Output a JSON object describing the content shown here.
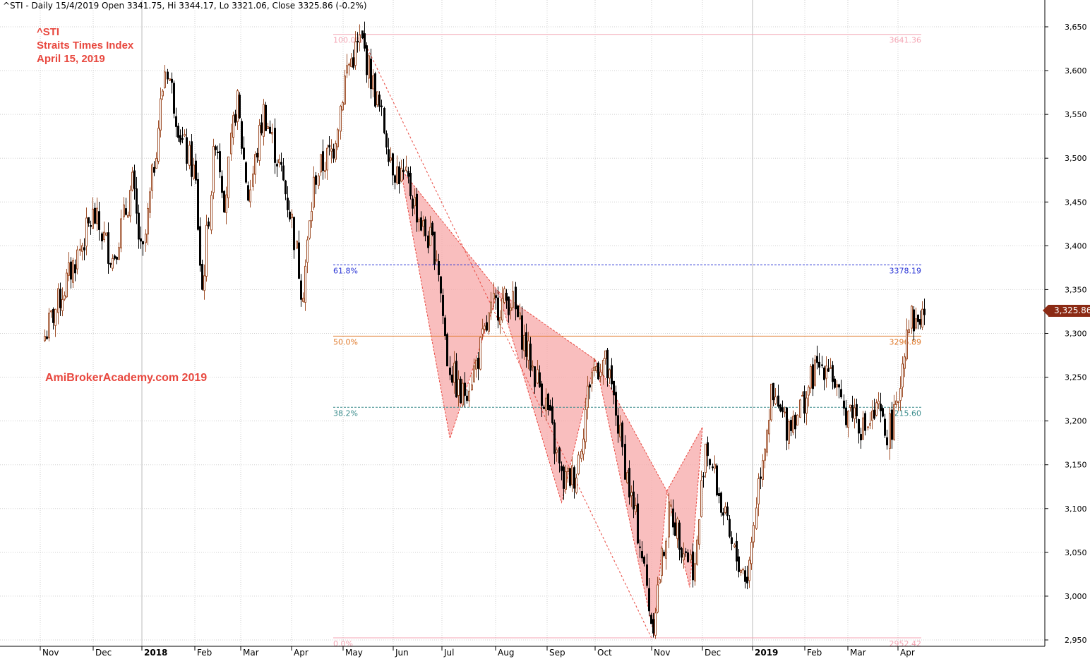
{
  "header": {
    "text": "^STI - Daily 15/4/2019 Open 3341.75, Hi 3344.17, Lo 3321.06, Close 3325.86 (-0.2%)"
  },
  "annotations": {
    "symbol": "^STI",
    "name": "Straits Times Index",
    "date": "April 15, 2019",
    "watermark": "AmiBrokerAcademy.com   2019",
    "color": "#e8483f"
  },
  "last_price": {
    "label": "3,325.86",
    "value": 3325.86
  },
  "chart_data": {
    "type": "candlestick",
    "title": "",
    "ylim": [
      2945,
      3660
    ],
    "y_ticks": [
      2950,
      3000,
      3050,
      3100,
      3150,
      3200,
      3250,
      3300,
      3350,
      3400,
      3450,
      3500,
      3550,
      3600,
      3650
    ],
    "y_tick_labels": [
      "2,950",
      "3,000",
      "3,050",
      "3,100",
      "3,150",
      "3,200",
      "3,250",
      "3,300",
      "3,350",
      "3,400",
      "3,450",
      "3,500",
      "3,550",
      "3,600",
      "3,650"
    ],
    "x_months": [
      {
        "label": "Nov",
        "bold": false,
        "idx": 0
      },
      {
        "label": "Dec",
        "bold": false,
        "idx": 1
      },
      {
        "label": "2018",
        "bold": true,
        "idx": 2
      },
      {
        "label": "Feb",
        "bold": false,
        "idx": 3
      },
      {
        "label": "Mar",
        "bold": false,
        "idx": 4
      },
      {
        "label": "Apr",
        "bold": false,
        "idx": 5
      },
      {
        "label": "May",
        "bold": false,
        "idx": 6
      },
      {
        "label": "Jun",
        "bold": false,
        "idx": 7
      },
      {
        "label": "Jul",
        "bold": false,
        "idx": 8
      },
      {
        "label": "Aug",
        "bold": false,
        "idx": 9
      },
      {
        "label": "Sep",
        "bold": false,
        "idx": 10
      },
      {
        "label": "Oct",
        "bold": false,
        "idx": 11
      },
      {
        "label": "Nov",
        "bold": false,
        "idx": 12
      },
      {
        "label": "Dec",
        "bold": false,
        "idx": 13
      },
      {
        "label": "2019",
        "bold": true,
        "idx": 14
      },
      {
        "label": "Feb",
        "bold": false,
        "idx": 15
      },
      {
        "label": "Mar",
        "bold": false,
        "idx": 16
      },
      {
        "label": "Apr",
        "bold": false,
        "idx": 17
      }
    ],
    "price_path": [
      [
        0,
        3285
      ],
      [
        1,
        3435
      ],
      [
        1.4,
        3385
      ],
      [
        1.8,
        3470
      ],
      [
        2.0,
        3380
      ],
      [
        2.45,
        3610
      ],
      [
        2.75,
        3520
      ],
      [
        3.0,
        3480
      ],
      [
        3.15,
        3345
      ],
      [
        3.45,
        3530
      ],
      [
        3.65,
        3450
      ],
      [
        3.9,
        3570
      ],
      [
        4.15,
        3455
      ],
      [
        4.45,
        3555
      ],
      [
        4.8,
        3480
      ],
      [
        5.0,
        3430
      ],
      [
        5.2,
        3345
      ],
      [
        5.45,
        3480
      ],
      [
        5.8,
        3510
      ],
      [
        6.05,
        3600
      ],
      [
        6.35,
        3635
      ],
      [
        6.7,
        3560
      ],
      [
        7.0,
        3490
      ],
      [
        7.3,
        3470
      ],
      [
        7.6,
        3420
      ],
      [
        7.9,
        3390
      ],
      [
        8.1,
        3270
      ],
      [
        8.35,
        3225
      ],
      [
        8.6,
        3260
      ],
      [
        8.95,
        3330
      ],
      [
        9.3,
        3340
      ],
      [
        9.6,
        3280
      ],
      [
        10.0,
        3215
      ],
      [
        10.3,
        3130
      ],
      [
        10.6,
        3140
      ],
      [
        10.9,
        3255
      ],
      [
        11.15,
        3270
      ],
      [
        11.35,
        3215
      ],
      [
        11.6,
        3120
      ],
      [
        11.8,
        3060
      ],
      [
        12.0,
        2965
      ],
      [
        12.35,
        3100
      ],
      [
        12.6,
        3060
      ],
      [
        12.85,
        3030
      ],
      [
        13.05,
        3180
      ],
      [
        13.3,
        3120
      ],
      [
        13.6,
        3050
      ],
      [
        13.9,
        3020
      ],
      [
        14.1,
        3130
      ],
      [
        14.35,
        3225
      ],
      [
        14.65,
        3195
      ],
      [
        14.95,
        3220
      ],
      [
        15.2,
        3255
      ],
      [
        15.55,
        3270
      ],
      [
        15.85,
        3210
      ],
      [
        16.1,
        3215
      ],
      [
        16.3,
        3190
      ],
      [
        16.6,
        3210
      ],
      [
        16.75,
        3185
      ],
      [
        16.95,
        3205
      ],
      [
        17.2,
        3320
      ],
      [
        17.35,
        3312
      ],
      [
        17.55,
        3325.86
      ]
    ],
    "fibonacci": [
      {
        "level": "100.0%",
        "value": 3641.36,
        "label": "3641.36",
        "color": "#f4a6b4",
        "style": "solid"
      },
      {
        "level": "61.8%",
        "value": 3378.19,
        "label": "3378.19",
        "color": "#2a35d6",
        "style": "dashed"
      },
      {
        "level": "50.0%",
        "value": 3296.89,
        "label": "3296.89",
        "color": "#e07a2c",
        "style": "solid"
      },
      {
        "level": "38.2%",
        "value": 3215.6,
        "label": "3215.60",
        "color": "#3a8c8c",
        "style": "dashed"
      },
      {
        "level": "0.0%",
        "value": 2952.42,
        "label": "2952.42",
        "color": "#f4a6b4",
        "style": "solid"
      }
    ],
    "trendline": {
      "from": [
        6.38,
        3638
      ],
      "to": [
        12.0,
        2952
      ],
      "color": "#e8483f"
    },
    "pattern1": {
      "points": [
        [
          7.15,
          3488
        ],
        [
          8.15,
          3180
        ],
        [
          9.05,
          3348
        ],
        [
          10.3,
          3107
        ],
        [
          11.0,
          3270
        ]
      ],
      "fill": "#f7a8a8"
    },
    "pattern2": {
      "points": [
        [
          11.0,
          3270
        ],
        [
          12.05,
          2955
        ],
        [
          12.3,
          3120
        ],
        [
          12.75,
          3010
        ],
        [
          13.0,
          3193
        ]
      ],
      "fill": "#f7a8a8"
    },
    "colors": {
      "up": "#a0522d",
      "down": "#000000",
      "grid": "#d0d0d0"
    }
  }
}
